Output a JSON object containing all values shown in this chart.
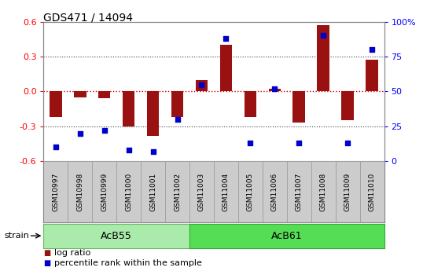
{
  "title": "GDS471 / 14094",
  "samples": [
    "GSM10997",
    "GSM10998",
    "GSM10999",
    "GSM11000",
    "GSM11001",
    "GSM11002",
    "GSM11003",
    "GSM11004",
    "GSM11005",
    "GSM11006",
    "GSM11007",
    "GSM11008",
    "GSM11009",
    "GSM11010"
  ],
  "log_ratio": [
    -0.22,
    -0.05,
    -0.06,
    -0.3,
    -0.38,
    -0.22,
    0.1,
    0.4,
    -0.22,
    0.02,
    -0.27,
    0.57,
    -0.25,
    0.27
  ],
  "percentile_rank": [
    10,
    20,
    22,
    8,
    7,
    30,
    55,
    88,
    13,
    52,
    13,
    90,
    13,
    80
  ],
  "percentile_scale": 100,
  "ylim": [
    -0.6,
    0.6
  ],
  "yticks_left": [
    -0.6,
    -0.3,
    0.0,
    0.3,
    0.6
  ],
  "right_yticks": [
    0,
    25,
    50,
    75,
    100
  ],
  "right_yticklabels": [
    "0",
    "25",
    "50",
    "75",
    "100%"
  ],
  "hline_zero_color": "#cc0000",
  "hline_dotted_color": "#444444",
  "bar_color": "#991111",
  "dot_color": "#0000cc",
  "group1_label": "AcB55",
  "group1_count": 6,
  "group2_label": "AcB61",
  "group2_count": 8,
  "group_label_prefix": "strain",
  "group1_bg": "#aaeaaa",
  "group2_bg": "#55dd55",
  "xticklabel_bg": "#cccccc",
  "xticklabel_edge": "#999999",
  "legend_bar_label": "log ratio",
  "legend_dot_label": "percentile rank within the sample",
  "plot_bg": "#ffffff",
  "fig_width": 5.38,
  "fig_height": 3.45,
  "dpi": 100
}
